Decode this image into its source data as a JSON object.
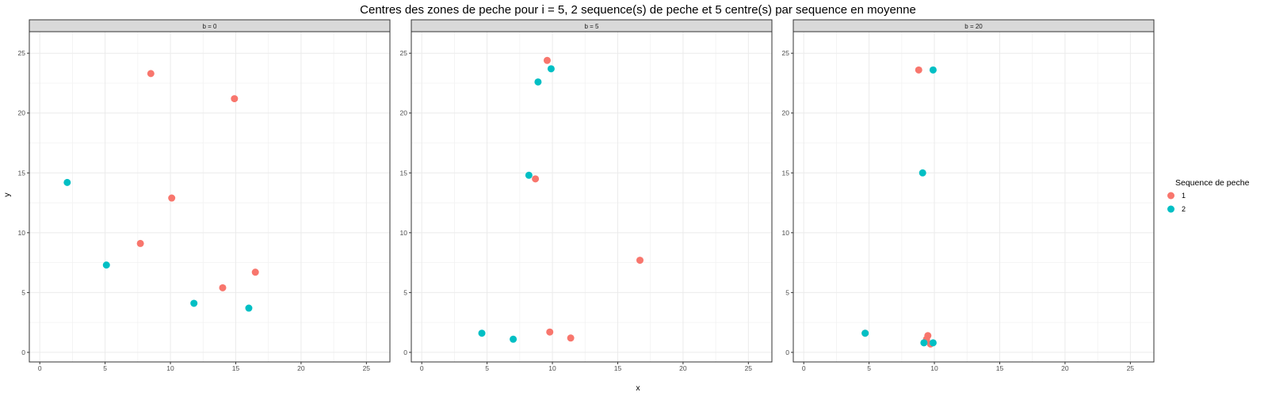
{
  "chart_data": {
    "type": "scatter",
    "title": "Centres des zones de peche pour i = 5, 2 sequence(s) de peche et 5 centre(s) par sequence en moyenne",
    "xlabel": "x",
    "ylabel": "y",
    "xlim": [
      -0.8,
      26.8
    ],
    "ylim": [
      -0.8,
      26.8
    ],
    "ticks": [
      0,
      5,
      10,
      15,
      20,
      25
    ],
    "grid": true,
    "legend": {
      "title": "Sequence de peche",
      "position": "right",
      "entries": [
        {
          "label": "1",
          "color": "#F8766D"
        },
        {
          "label": "2",
          "color": "#00BFC4"
        }
      ]
    },
    "panels": [
      {
        "strip": "b = 0",
        "series": [
          {
            "name": "1",
            "color": "#F8766D",
            "points": [
              [
                8.5,
                23.3
              ],
              [
                14.9,
                21.2
              ],
              [
                10.1,
                12.9
              ],
              [
                7.7,
                9.1
              ],
              [
                14.0,
                5.4
              ],
              [
                16.5,
                6.7
              ]
            ]
          },
          {
            "name": "2",
            "color": "#00BFC4",
            "points": [
              [
                2.1,
                14.2
              ],
              [
                5.1,
                7.3
              ],
              [
                11.8,
                4.1
              ],
              [
                16.0,
                3.7
              ]
            ]
          }
        ]
      },
      {
        "strip": "b = 5",
        "series": [
          {
            "name": "1",
            "color": "#F8766D",
            "points": [
              [
                9.6,
                24.4
              ],
              [
                8.7,
                14.5
              ],
              [
                16.7,
                7.7
              ],
              [
                9.8,
                1.7
              ],
              [
                11.4,
                1.2
              ]
            ]
          },
          {
            "name": "2",
            "color": "#00BFC4",
            "points": [
              [
                9.9,
                23.7
              ],
              [
                8.9,
                22.6
              ],
              [
                8.2,
                14.8
              ],
              [
                4.6,
                1.6
              ],
              [
                7.0,
                1.1
              ]
            ]
          }
        ]
      },
      {
        "strip": "b = 20",
        "series": [
          {
            "name": "1",
            "color": "#F8766D",
            "points": [
              [
                8.8,
                23.6
              ],
              [
                9.5,
                1.4
              ],
              [
                9.4,
                1.1
              ],
              [
                9.7,
                0.7
              ],
              [
                4.7,
                1.6
              ]
            ]
          },
          {
            "name": "2",
            "color": "#00BFC4",
            "points": [
              [
                9.9,
                23.6
              ],
              [
                9.1,
                15.0
              ],
              [
                4.7,
                1.6
              ],
              [
                9.2,
                0.8
              ],
              [
                9.9,
                0.8
              ]
            ]
          }
        ]
      }
    ]
  }
}
